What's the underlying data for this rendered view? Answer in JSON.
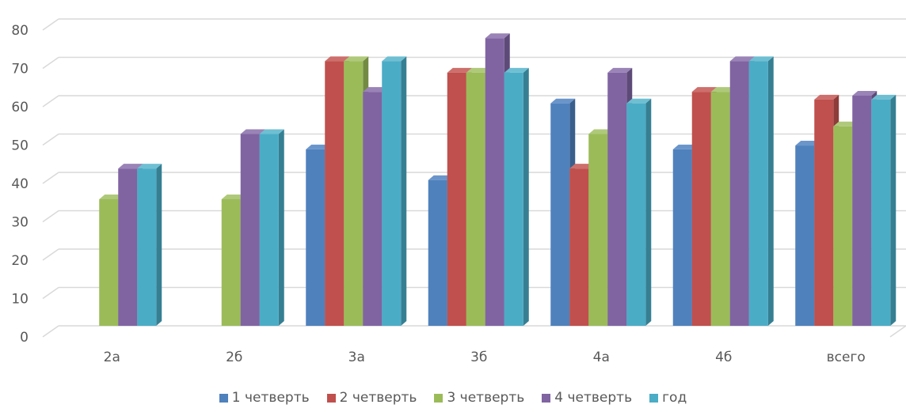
{
  "chart_data": {
    "type": "bar",
    "categories": [
      "2а",
      "2б",
      "3а",
      "3б",
      "4а",
      "4б",
      "всего"
    ],
    "series": [
      {
        "name": "1 четверть",
        "color": "#4F81BD",
        "side": "#3A5F8C",
        "top": "#6A95CB",
        "values": [
          null,
          null,
          46,
          38,
          58,
          46,
          47
        ]
      },
      {
        "name": "2 четверть",
        "color": "#C0504D",
        "side": "#8E3B39",
        "top": "#CD6F6C",
        "values": [
          null,
          null,
          69,
          66,
          41,
          61,
          59
        ]
      },
      {
        "name": "3 четверть",
        "color": "#9BBB59",
        "side": "#738A42",
        "top": "#AFC97A",
        "values": [
          33,
          33,
          69,
          66,
          50,
          61,
          52
        ]
      },
      {
        "name": "4 четверть",
        "color": "#8064A2",
        "side": "#5E4A78",
        "top": "#9A83B6",
        "values": [
          41,
          50,
          61,
          75,
          66,
          69,
          60
        ]
      },
      {
        "name": "год",
        "color": "#4BACC6",
        "side": "#367F93",
        "top": "#6FBFD3",
        "values": [
          41,
          50,
          69,
          66,
          58,
          69,
          59
        ]
      }
    ],
    "yticks": [
      "0",
      "10",
      "20",
      "30",
      "40",
      "50",
      "60",
      "70",
      "80"
    ],
    "ylim": [
      0,
      80
    ],
    "grid": true,
    "legend_position": "bottom"
  }
}
